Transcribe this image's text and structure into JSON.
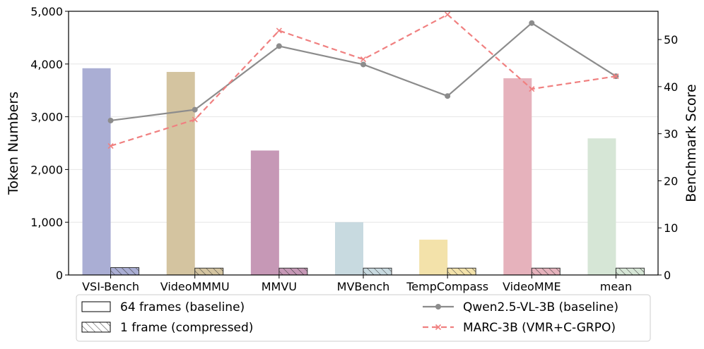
{
  "chart_data": {
    "type": "bar",
    "categories": [
      "VSI-Bench",
      "VideoMMMU",
      "MMVU",
      "MVBench",
      "TempCompass",
      "VideoMME",
      "mean"
    ],
    "bar_series": [
      {
        "name": "64 frames (baseline)",
        "pattern": "solid",
        "values": [
          3920,
          3850,
          2360,
          1000,
          670,
          3730,
          2590
        ]
      },
      {
        "name": "1 frame (compressed)",
        "pattern": "hatched",
        "values": [
          140,
          130,
          130,
          130,
          130,
          130,
          130
        ]
      }
    ],
    "line_series": [
      {
        "name": "Qwen2.5-VL-3B (baseline)",
        "style": "solid",
        "marker": "circle",
        "color": "#8c8c8c",
        "values": [
          32.8,
          35.1,
          48.6,
          44.7,
          38.0,
          53.5,
          42.2
        ]
      },
      {
        "name": "MARC-3B (VMR+C-GRPO)",
        "style": "dashed",
        "marker": "x",
        "color": "#f08080",
        "values": [
          27.4,
          33.0,
          51.9,
          45.8,
          55.3,
          39.5,
          42.2
        ]
      }
    ],
    "bar_colors": [
      "#aaaed4",
      "#d4c4a0",
      "#c698b6",
      "#c8dae0",
      "#f3e2aa",
      "#e6b2bc",
      "#d6e6d6"
    ],
    "y_left": {
      "label": "Token Numbers",
      "lim": [
        0,
        5000
      ],
      "ticks": [
        0,
        1000,
        2000,
        3000,
        4000,
        5000
      ],
      "tick_labels": [
        "0",
        "1,000",
        "2,000",
        "3,000",
        "4,000",
        "5,000"
      ]
    },
    "y_right": {
      "label": "Benchmark Score",
      "lim": [
        0,
        56
      ],
      "ticks": [
        0,
        10,
        20,
        30,
        40,
        50
      ],
      "tick_labels": [
        "0",
        "10",
        "20",
        "30",
        "40",
        "50"
      ]
    },
    "grid": true,
    "legend_position": "bottom"
  }
}
